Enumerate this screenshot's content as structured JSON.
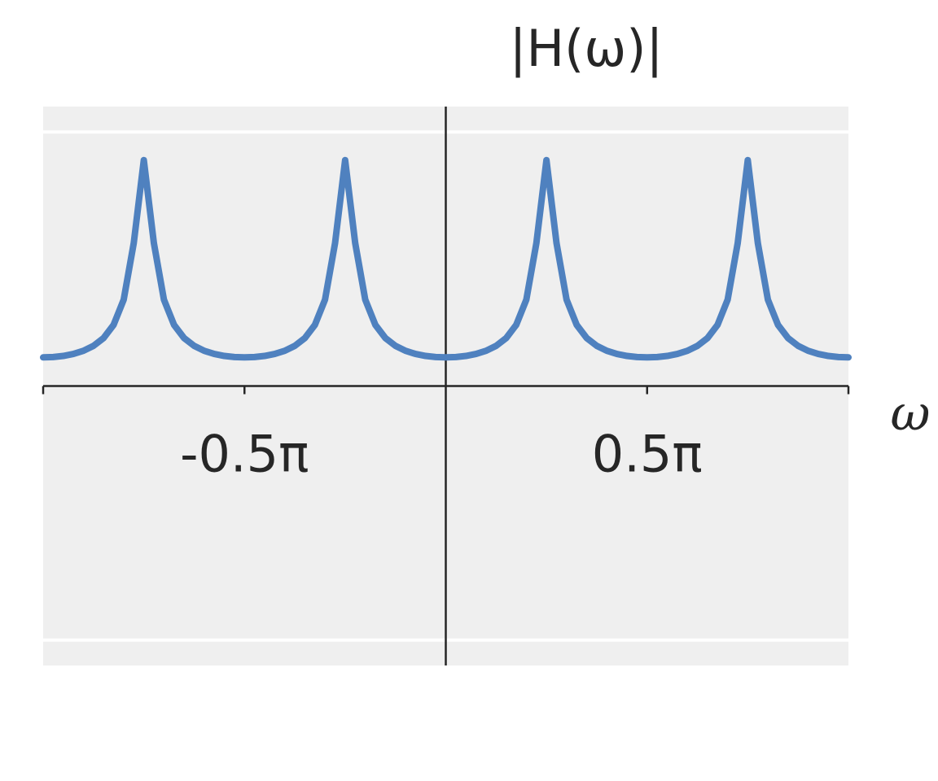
{
  "chart_data": {
    "type": "line",
    "title": "|H(ω)|",
    "xlabel": "ω",
    "x": [
      -1,
      -0.975,
      -0.95,
      -0.925,
      -0.9,
      -0.875,
      -0.85,
      -0.825,
      -0.8,
      -0.775,
      -0.75,
      -0.725,
      -0.7,
      -0.675,
      -0.65,
      -0.625,
      -0.6,
      -0.575,
      -0.55,
      -0.525,
      -0.5,
      -0.475,
      -0.45,
      -0.425,
      -0.4,
      -0.375,
      -0.35,
      -0.325,
      -0.3,
      -0.275,
      -0.25,
      -0.225,
      -0.2,
      -0.175,
      -0.15,
      -0.125,
      -0.1,
      -0.075,
      -0.05,
      -0.025,
      0,
      0.025,
      0.05,
      0.075,
      0.1,
      0.125,
      0.15,
      0.175,
      0.2,
      0.225,
      0.25,
      0.275,
      0.3,
      0.325,
      0.35,
      0.375,
      0.4,
      0.425,
      0.45,
      0.475,
      0.5,
      0.525,
      0.55,
      0.575,
      0.6,
      0.625,
      0.65,
      0.675,
      0.7,
      0.725,
      0.75,
      0.775,
      0.8,
      0.825,
      0.85,
      0.875,
      0.9,
      0.925,
      0.95,
      0.975,
      1
    ],
    "series": [
      {
        "color": "#4f81bf",
        "values": [
          0.1127,
          0.1141,
          0.1184,
          0.1262,
          0.1387,
          0.1581,
          0.1888,
          0.2409,
          0.3397,
          0.5626,
          0.8893,
          0.5626,
          0.3397,
          0.2409,
          0.1888,
          0.1581,
          0.1387,
          0.1262,
          0.1184,
          0.1141,
          0.1127,
          0.1141,
          0.1184,
          0.1262,
          0.1387,
          0.1581,
          0.1888,
          0.2409,
          0.3397,
          0.5626,
          0.8893,
          0.5626,
          0.3397,
          0.2409,
          0.1888,
          0.1581,
          0.1387,
          0.1262,
          0.1184,
          0.1141,
          0.1127,
          0.1141,
          0.1184,
          0.1262,
          0.1387,
          0.1581,
          0.1888,
          0.2409,
          0.3397,
          0.5626,
          0.8893,
          0.5626,
          0.3397,
          0.2409,
          0.1888,
          0.1581,
          0.1387,
          0.1262,
          0.1184,
          0.1141,
          0.1127,
          0.1141,
          0.1184,
          0.1262,
          0.1387,
          0.1581,
          0.1888,
          0.2409,
          0.3397,
          0.5626,
          0.8893,
          0.5626,
          0.3397,
          0.2409,
          0.1888,
          0.1581,
          0.1387,
          0.1262,
          0.1184,
          0.1141,
          0.1127
        ]
      }
    ],
    "xlim": [
      -1,
      1
    ],
    "xticks": [
      {
        "value": -0.5,
        "label": "-0.5π"
      },
      {
        "value": 0.5,
        "label": "0.5π"
      }
    ],
    "ylim": [
      -1.1,
      1.1
    ],
    "yticks": [
      -1,
      1
    ],
    "ytick_labels": false,
    "grid": true
  }
}
